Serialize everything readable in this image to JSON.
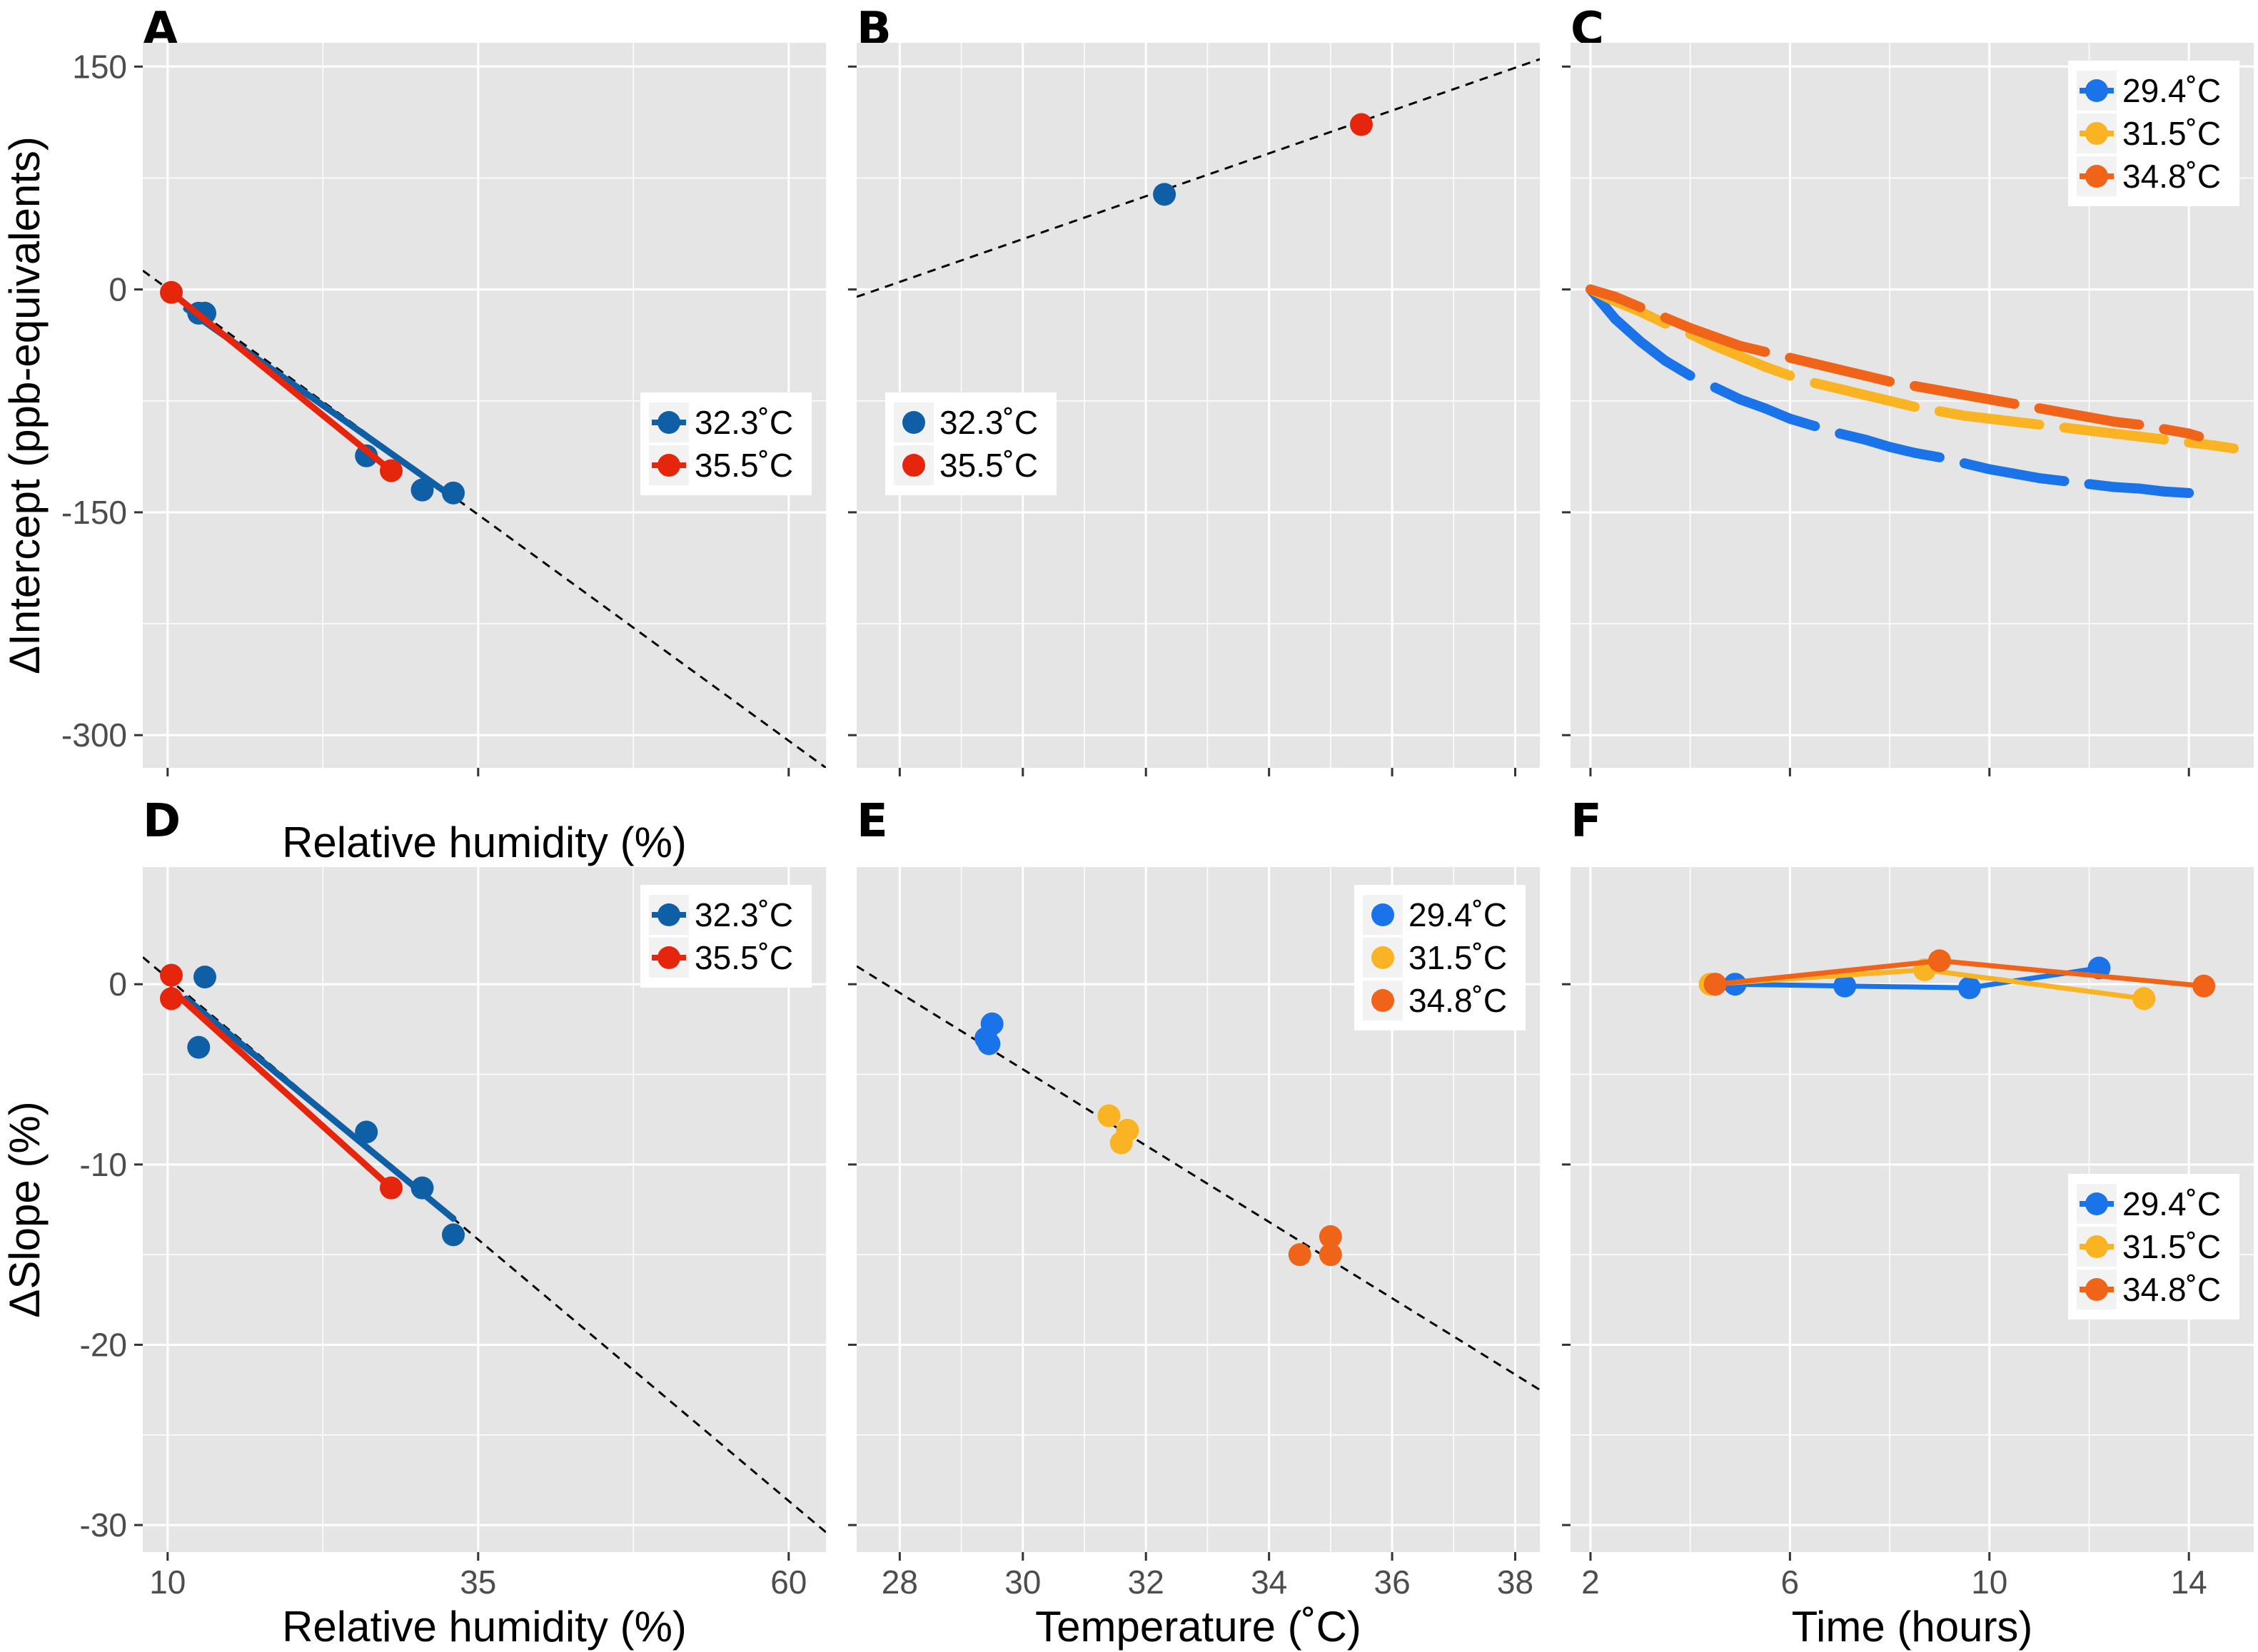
{
  "chart_data": [
    {
      "panel": "A",
      "type": "scatter",
      "xlabel": "Relative humidity (%)",
      "ylabel": "ΔIntercept (ppb-equivalents)",
      "xlim": [
        8,
        63
      ],
      "ylim": [
        -322,
        166
      ],
      "xticks": [
        10,
        35,
        60
      ],
      "xgrid": [
        10,
        35,
        60,
        22.5,
        47.5
      ],
      "yticks": [
        150,
        0,
        -150,
        -300
      ],
      "ygrid": [
        150,
        0,
        -150,
        -300,
        75,
        -75,
        -225
      ],
      "show_xlabels": false,
      "show_ylabels": true,
      "ref_line": {
        "x": [
          8,
          63
        ],
        "y": [
          12.7,
          -322
        ]
      },
      "legend_pos": "right",
      "series": [
        {
          "name": "32.3˚C",
          "color": "#0f5fa6",
          "x": [
            12.5,
            13,
            26,
            30.5,
            33
          ],
          "y": [
            -16,
            -16,
            -112,
            -135,
            -137
          ],
          "fit": {
            "x": [
              11.5,
              33
            ],
            "y": [
              -13,
              -140
            ]
          }
        },
        {
          "name": "35.5˚C",
          "color": "#e6250d",
          "x": [
            10.3,
            28
          ],
          "y": [
            -2,
            -122
          ],
          "fit": {
            "x": [
              10.3,
              28
            ],
            "y": [
              -2,
              -122
            ]
          }
        }
      ]
    },
    {
      "panel": "B",
      "type": "scatter",
      "xlabel": "",
      "ylabel": "",
      "xlim": [
        27.3,
        38.4
      ],
      "ylim": [
        -322,
        166
      ],
      "xticks": [
        28,
        30,
        32,
        34,
        36,
        38
      ],
      "xgrid": [
        28,
        30,
        32,
        34,
        36,
        38,
        29,
        31,
        33,
        35,
        37
      ],
      "yticks": [
        150,
        0,
        -150,
        -300
      ],
      "ygrid": [
        150,
        0,
        -150,
        -300,
        75,
        -75,
        -225
      ],
      "show_xlabels": false,
      "show_ylabels": false,
      "ref_line": {
        "x": [
          27.3,
          38.4
        ],
        "y": [
          -5,
          155
        ]
      },
      "legend_pos": "left",
      "series": [
        {
          "name": "32.3˚C",
          "color": "#0f5fa6",
          "x": [
            32.3
          ],
          "y": [
            64
          ],
          "fit": null
        },
        {
          "name": "35.5˚C",
          "color": "#e6250d",
          "x": [
            35.5
          ],
          "y": [
            111
          ],
          "fit": null
        }
      ]
    },
    {
      "panel": "C",
      "type": "line",
      "xlabel": "",
      "ylabel": "",
      "xlim": [
        1.6,
        15.3
      ],
      "ylim": [
        -322,
        166
      ],
      "xticks": [
        2,
        6,
        10,
        14
      ],
      "xgrid": [
        2,
        6,
        10,
        14,
        4,
        8,
        12
      ],
      "yticks": [
        150,
        0,
        -150,
        -300
      ],
      "ygrid": [
        150,
        0,
        -150,
        -300,
        75,
        -75,
        -225
      ],
      "show_xlabels": false,
      "show_ylabels": false,
      "ref_line": null,
      "legend_pos": "top-right",
      "series": [
        {
          "name": "29.4˚C",
          "color": "#1a73e8",
          "x": [
            2,
            2.5,
            3,
            3.5,
            4,
            4.5,
            5,
            5.5,
            6,
            6.5,
            7,
            7.5,
            8,
            8.5,
            9,
            9.5,
            10,
            10.5,
            11,
            11.5,
            12,
            12.5,
            13,
            13.5,
            14,
            14.2
          ],
          "y": [
            0,
            -20,
            -35,
            -48,
            -58,
            -66,
            -74,
            -80,
            -87,
            -92,
            -97,
            -101,
            -106,
            -110,
            -113,
            -117,
            -121,
            -124,
            -127,
            -129,
            -131,
            -133,
            -134,
            -136,
            -137,
            -138
          ]
        },
        {
          "name": "31.5˚C",
          "color": "#f9b323",
          "x": [
            2,
            2.5,
            3,
            3.5,
            4,
            4.5,
            5,
            5.5,
            6,
            6.5,
            7,
            7.5,
            8,
            8.5,
            9,
            9.5,
            10,
            10.5,
            11,
            11.5,
            12,
            12.5,
            13,
            13.5,
            14,
            14.5,
            14.9
          ],
          "y": [
            0,
            -8,
            -15,
            -23,
            -30,
            -38,
            -45,
            -52,
            -58,
            -63,
            -67,
            -71,
            -75,
            -79,
            -82,
            -85,
            -87,
            -89,
            -91,
            -93,
            -95,
            -97,
            -99,
            -101,
            -103,
            -105,
            -107
          ]
        },
        {
          "name": "34.8˚C",
          "color": "#f0641a",
          "x": [
            2,
            2.5,
            3,
            3.5,
            4,
            4.5,
            5,
            5.5,
            6,
            6.5,
            7,
            7.5,
            8,
            8.5,
            9,
            9.5,
            10,
            10.5,
            11,
            11.5,
            12,
            12.5,
            13,
            13.5,
            14,
            14.2
          ],
          "y": [
            0,
            -5,
            -12,
            -19,
            -26,
            -32,
            -38,
            -42,
            -46,
            -50,
            -54,
            -58,
            -62,
            -65,
            -68,
            -71,
            -74,
            -77,
            -80,
            -83,
            -86,
            -89,
            -91,
            -94,
            -97,
            -99
          ]
        }
      ]
    },
    {
      "panel": "D",
      "type": "scatter",
      "xlabel": "Relative humidity (%)",
      "ylabel": "ΔSlope (%)",
      "xlim": [
        8,
        63
      ],
      "ylim": [
        -31.5,
        6.5
      ],
      "xticks": [
        10,
        35,
        60
      ],
      "xgrid": [
        10,
        35,
        60,
        22.5,
        47.5
      ],
      "yticks": [
        0,
        -10,
        -20,
        -30
      ],
      "ygrid": [
        0,
        -10,
        -20,
        -30,
        -5,
        -15,
        -25
      ],
      "show_xlabels": true,
      "show_ylabels": true,
      "ref_line": {
        "x": [
          8,
          63
        ],
        "y": [
          1.5,
          -30.4
        ]
      },
      "legend_pos": "top-right",
      "series": [
        {
          "name": "32.3˚C",
          "color": "#0f5fa6",
          "x": [
            13,
            12.5,
            26,
            30.5,
            33
          ],
          "y": [
            0.4,
            -3.5,
            -8.2,
            -11.3,
            -13.9
          ],
          "fit": {
            "x": [
              11.5,
              33
            ],
            "y": [
              -0.8,
              -13.0
            ]
          }
        },
        {
          "name": "35.5˚C",
          "color": "#e6250d",
          "x": [
            10.3,
            10.3,
            28
          ],
          "y": [
            0.5,
            -0.8,
            -11.3
          ],
          "fit": {
            "x": [
              10.3,
              28
            ],
            "y": [
              -0.3,
              -11.3
            ]
          }
        }
      ]
    },
    {
      "panel": "E",
      "type": "scatter",
      "xlabel": "Temperature (˚C)",
      "ylabel": "",
      "xlim": [
        27.3,
        38.4
      ],
      "ylim": [
        -31.5,
        6.5
      ],
      "xticks": [
        28,
        30,
        32,
        34,
        36,
        38
      ],
      "xgrid": [
        28,
        30,
        32,
        34,
        36,
        38,
        29,
        31,
        33,
        35,
        37
      ],
      "yticks": [
        0,
        -10,
        -20,
        -30
      ],
      "ygrid": [
        0,
        -10,
        -20,
        -30,
        -5,
        -15,
        -25
      ],
      "show_xlabels": true,
      "show_ylabels": false,
      "ref_line": {
        "x": [
          27.3,
          38.4
        ],
        "y": [
          1.0,
          -22.5
        ]
      },
      "legend_pos": "top-right",
      "series": [
        {
          "name": "29.4˚C",
          "color": "#1a73e8",
          "x": [
            29.5,
            29.4,
            29.45
          ],
          "y": [
            -2.2,
            -3.0,
            -3.3
          ],
          "fit": null
        },
        {
          "name": "31.5˚C",
          "color": "#f9b323",
          "x": [
            31.4,
            31.7,
            31.6
          ],
          "y": [
            -7.3,
            -8.1,
            -8.8
          ],
          "fit": null
        },
        {
          "name": "34.8˚C",
          "color": "#f0641a",
          "x": [
            35,
            34.5,
            35
          ],
          "y": [
            -14.0,
            -15.0,
            -15.0
          ],
          "fit": null
        }
      ]
    },
    {
      "panel": "F",
      "type": "line",
      "xlabel": "Time (hours)",
      "ylabel": "",
      "xlim": [
        1.6,
        15.3
      ],
      "ylim": [
        -31.5,
        6.5
      ],
      "xticks": [
        2,
        6,
        10,
        14
      ],
      "xgrid": [
        2,
        6,
        10,
        14,
        4,
        8,
        12
      ],
      "yticks": [
        0,
        -10,
        -20,
        -30
      ],
      "ygrid": [
        0,
        -10,
        -20,
        -30,
        -5,
        -15,
        -25
      ],
      "show_xlabels": true,
      "show_ylabels": false,
      "ref_line": null,
      "legend_pos": "right",
      "series": [
        {
          "name": "29.4˚C",
          "color": "#1a73e8",
          "x": [
            4.5,
            4.9,
            7.1,
            9.6,
            12.2
          ],
          "y": [
            0,
            0,
            -0.1,
            -0.2,
            0.9
          ],
          "markers": true
        },
        {
          "name": "31.5˚C",
          "color": "#f9b323",
          "x": [
            4.4,
            8.7,
            13.1
          ],
          "y": [
            0,
            0.8,
            -0.8
          ],
          "markers": true
        },
        {
          "name": "34.8˚C",
          "color": "#f0641a",
          "x": [
            4.5,
            9.0,
            14.3
          ],
          "y": [
            0,
            1.3,
            -0.1
          ],
          "markers": true
        }
      ]
    }
  ]
}
